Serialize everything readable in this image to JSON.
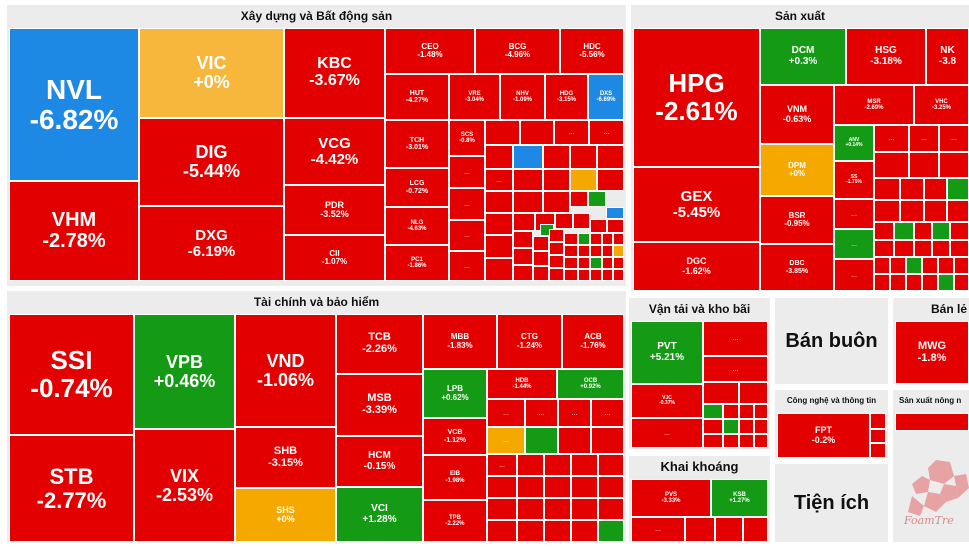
{
  "sectors": {
    "construction": "Xây dựng và Bất động sản",
    "finance": "Tài chính và bảo hiểm",
    "manufacturing": "Sản xuất",
    "transport": "Vận tải và kho bãi",
    "wholesale": "Bán buôn",
    "retail": "Bán lẻ",
    "tech": "Công nghệ và thông tin",
    "agri": "Sản xuất nông n",
    "mining": "Khai khoáng",
    "utilities": "Tiện ích"
  },
  "ellipsis": "...",
  "watermark": "FoamTre",
  "colors": {
    "down": "#e30000",
    "up": "#159a15",
    "floor": "#1e88e5",
    "flat": "#f6b73c"
  },
  "tiles": {
    "NVL": {
      "tk": "NVL",
      "pc": "-6.82%"
    },
    "VHM": {
      "tk": "VHM",
      "pc": "-2.78%"
    },
    "VIC": {
      "tk": "VIC",
      "pc": "+0%"
    },
    "DIG": {
      "tk": "DIG",
      "pc": "-5.44%"
    },
    "DXG": {
      "tk": "DXG",
      "pc": "-6.19%"
    },
    "KBC": {
      "tk": "KBC",
      "pc": "-3.67%"
    },
    "VCG": {
      "tk": "VCG",
      "pc": "-4.42%"
    },
    "PDR": {
      "tk": "PDR",
      "pc": "-3.52%"
    },
    "CII": {
      "tk": "CII",
      "pc": "-1.07%"
    },
    "CEO": {
      "tk": "CEO",
      "pc": "-1.48%"
    },
    "BCG": {
      "tk": "BCG",
      "pc": "-4.96%"
    },
    "HDC": {
      "tk": "HDC",
      "pc": "-5.56%"
    },
    "HUT": {
      "tk": "HUT",
      "pc": "-4.27%"
    },
    "VRE": {
      "tk": "VRE",
      "pc": "-3.04%"
    },
    "NHV": {
      "tk": "NHV",
      "pc": "-1.09%"
    },
    "HDG": {
      "tk": "HDG",
      "pc": "-3.15%"
    },
    "DXS": {
      "tk": "DXS",
      "pc": "-6.69%"
    },
    "TCH": {
      "tk": "TCH",
      "pc": "-3.01%"
    },
    "SCS": {
      "tk": "SCS",
      "pc": "-0.8%"
    },
    "LCG": {
      "tk": "LCG",
      "pc": "-0.72%"
    },
    "NLG": {
      "tk": "NLG",
      "pc": "-4.63%"
    },
    "PC1": {
      "tk": "PC1",
      "pc": "-1.86%"
    },
    "SSI": {
      "tk": "SSI",
      "pc": "-0.74%"
    },
    "STB": {
      "tk": "STB",
      "pc": "-2.77%"
    },
    "VPB": {
      "tk": "VPB",
      "pc": "+0.46%"
    },
    "VIX": {
      "tk": "VIX",
      "pc": "-2.53%"
    },
    "VND": {
      "tk": "VND",
      "pc": "-1.06%"
    },
    "SHB": {
      "tk": "SHB",
      "pc": "-3.15%"
    },
    "SHS": {
      "tk": "SHS",
      "pc": "+0%"
    },
    "TCB": {
      "tk": "TCB",
      "pc": "-2.26%"
    },
    "MSB": {
      "tk": "MSB",
      "pc": "-3.39%"
    },
    "HCM": {
      "tk": "HCM",
      "pc": "-0.15%"
    },
    "VCI": {
      "tk": "VCI",
      "pc": "+1.28%"
    },
    "MBB": {
      "tk": "MBB",
      "pc": "-1.83%"
    },
    "CTG": {
      "tk": "CTG",
      "pc": "-1.24%"
    },
    "ACB": {
      "tk": "ACB",
      "pc": "-1.76%"
    },
    "LPB": {
      "tk": "LPB",
      "pc": "+0.62%"
    },
    "HDB": {
      "tk": "HDB",
      "pc": "-1.44%"
    },
    "OCB": {
      "tk": "OCB",
      "pc": "+0.92%"
    },
    "VCB": {
      "tk": "VCB",
      "pc": "-1.12%"
    },
    "EIB": {
      "tk": "EIB",
      "pc": "-1.98%"
    },
    "TPB": {
      "tk": "TPB",
      "pc": "-2.22%"
    },
    "HPG": {
      "tk": "HPG",
      "pc": "-2.61%"
    },
    "GEX": {
      "tk": "GEX",
      "pc": "-5.45%"
    },
    "DGC": {
      "tk": "DGC",
      "pc": "-1.62%"
    },
    "DCM": {
      "tk": "DCM",
      "pc": "+0.3%"
    },
    "HSG": {
      "tk": "HSG",
      "pc": "-3.18%"
    },
    "NKG": {
      "tk": "NK",
      "pc": "-3.8"
    },
    "VNM": {
      "tk": "VNM",
      "pc": "-0.63%"
    },
    "MSR": {
      "tk": "MSR",
      "pc": "-2.69%"
    },
    "VHC": {
      "tk": "VHC",
      "pc": "-3.25%"
    },
    "DPM": {
      "tk": "DPM",
      "pc": "+0%"
    },
    "BSR": {
      "tk": "BSR",
      "pc": "-0.95%"
    },
    "DBC": {
      "tk": "DBC",
      "pc": "-3.85%"
    },
    "ANV": {
      "tk": "ANV",
      "pc": "+0.14%"
    },
    "SS": {
      "tk": "SS",
      "pc": "-1.75%"
    },
    "PVT": {
      "tk": "PVT",
      "pc": "+5.21%"
    },
    "VJC": {
      "tk": "VJC",
      "pc": "-0.37%"
    },
    "MWG": {
      "tk": "MWG",
      "pc": "-1.8%"
    },
    "FPT": {
      "tk": "FPT",
      "pc": "-0.2%"
    },
    "PVS": {
      "tk": "PVS",
      "pc": "-3.33%"
    },
    "KSB": {
      "tk": "KSB",
      "pc": "+1.27%"
    }
  }
}
